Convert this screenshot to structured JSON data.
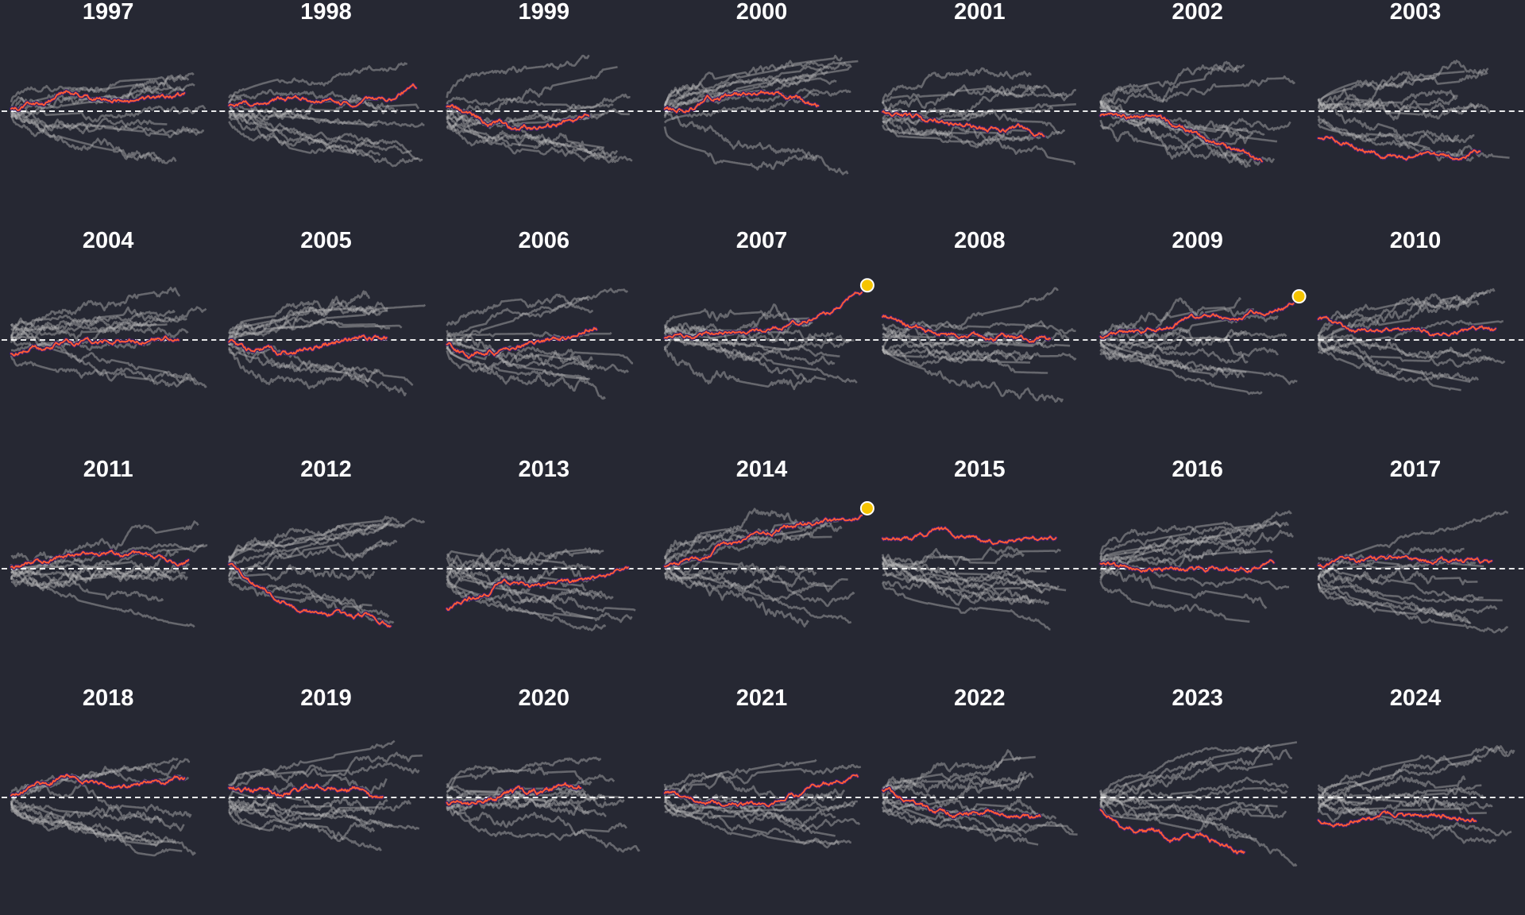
{
  "chart_data": {
    "type": "line",
    "layout": "small-multiples",
    "grid_rows": 4,
    "grid_cols": 7,
    "title": "",
    "xlabel": "",
    "ylabel": "",
    "baseline": {
      "y": 0,
      "style": "dashed",
      "color": "#ffffff"
    },
    "colors": {
      "background": "#262833",
      "highlight_line": "#ff5a36",
      "highlight_outline": "#3a1f66",
      "other_lines": "#bfbfbf",
      "record_marker": "#f5c400",
      "panel_title": "#ffffff"
    },
    "other_series_per_panel": 11,
    "panels": [
      {
        "year": "1997",
        "seed": 1997,
        "trend": [
          0.03,
          0.15,
          0.3,
          0.22,
          0.18,
          0.2,
          0.26
        ],
        "end": 0.88,
        "record": false
      },
      {
        "year": "1998",
        "seed": 1998,
        "trend": [
          0.08,
          0.16,
          0.22,
          0.2,
          0.15,
          0.22,
          0.42
        ],
        "end": 0.95,
        "record": false
      },
      {
        "year": "1999",
        "seed": 1999,
        "trend": [
          0.1,
          -0.08,
          -0.22,
          -0.32,
          -0.28,
          -0.18,
          -0.12
        ],
        "end": 0.72,
        "record": false
      },
      {
        "year": "2000",
        "seed": 2000,
        "trend": [
          0.05,
          0.08,
          0.25,
          0.3,
          0.28,
          0.22,
          0.1
        ],
        "end": 0.78,
        "record": false
      },
      {
        "year": "2001",
        "seed": 2001,
        "trend": [
          -0.02,
          -0.12,
          -0.18,
          -0.25,
          -0.32,
          -0.3,
          -0.4
        ],
        "end": 0.82,
        "record": false
      },
      {
        "year": "2002",
        "seed": 2002,
        "trend": [
          -0.1,
          -0.12,
          -0.15,
          -0.3,
          -0.5,
          -0.7,
          -0.85
        ],
        "end": 0.82,
        "record": false
      },
      {
        "year": "2003",
        "seed": 2003,
        "trend": [
          -0.45,
          -0.55,
          -0.7,
          -0.78,
          -0.8,
          -0.8,
          -0.75
        ],
        "end": 0.82,
        "record": false
      },
      {
        "year": "2004",
        "seed": 2004,
        "trend": [
          -0.22,
          -0.12,
          -0.05,
          0.0,
          -0.02,
          0.0,
          0.08
        ],
        "end": 0.85,
        "record": false
      },
      {
        "year": "2005",
        "seed": 2005,
        "trend": [
          -0.05,
          -0.18,
          -0.22,
          -0.18,
          -0.05,
          0.05,
          0.08
        ],
        "end": 0.8,
        "record": false
      },
      {
        "year": "2006",
        "seed": 2006,
        "trend": [
          -0.08,
          -0.25,
          -0.18,
          -0.1,
          -0.02,
          0.06,
          0.2
        ],
        "end": 0.76,
        "record": false
      },
      {
        "year": "2007",
        "seed": 2007,
        "trend": [
          0.05,
          0.12,
          0.15,
          0.18,
          0.3,
          0.48,
          0.82
        ],
        "end": 1.0,
        "record": true
      },
      {
        "year": "2008",
        "seed": 2008,
        "trend": [
          0.4,
          0.25,
          0.12,
          0.05,
          0.02,
          0.02,
          0.05
        ],
        "end": 0.85,
        "record": false
      },
      {
        "year": "2009",
        "seed": 2009,
        "trend": [
          0.05,
          0.12,
          0.25,
          0.35,
          0.4,
          0.48,
          0.62
        ],
        "end": 0.98,
        "record": true
      },
      {
        "year": "2010",
        "seed": 2010,
        "trend": [
          0.35,
          0.2,
          0.15,
          0.22,
          0.12,
          0.18,
          0.18
        ],
        "end": 0.9,
        "record": false
      },
      {
        "year": "2011",
        "seed": 2011,
        "trend": [
          0.02,
          0.12,
          0.28,
          0.3,
          0.25,
          0.22,
          0.15
        ],
        "end": 0.9,
        "record": false
      },
      {
        "year": "2012",
        "seed": 2012,
        "trend": [
          0.05,
          -0.25,
          -0.55,
          -0.75,
          -0.8,
          -0.85,
          -0.92
        ],
        "end": 0.82,
        "record": false
      },
      {
        "year": "2013",
        "seed": 2013,
        "trend": [
          -0.7,
          -0.5,
          -0.25,
          -0.3,
          -0.28,
          -0.15,
          -0.05
        ],
        "end": 0.92,
        "record": false
      },
      {
        "year": "2014",
        "seed": 2014,
        "trend": [
          0.05,
          0.18,
          0.42,
          0.6,
          0.75,
          0.82,
          0.92
        ],
        "end": 1.0,
        "record": true
      },
      {
        "year": "2015",
        "seed": 2015,
        "trend": [
          0.55,
          0.52,
          0.62,
          0.55,
          0.48,
          0.5,
          0.55
        ],
        "end": 0.88,
        "record": false
      },
      {
        "year": "2016",
        "seed": 2016,
        "trend": [
          0.1,
          0.02,
          0.02,
          0.0,
          0.02,
          0.0,
          0.12
        ],
        "end": 0.88,
        "record": false
      },
      {
        "year": "2017",
        "seed": 2017,
        "trend": [
          0.05,
          0.12,
          0.18,
          0.2,
          0.15,
          0.12,
          0.08
        ],
        "end": 0.88,
        "record": false
      },
      {
        "year": "2018",
        "seed": 2018,
        "trend": [
          0.05,
          0.2,
          0.35,
          0.25,
          0.18,
          0.22,
          0.32
        ],
        "end": 0.88,
        "record": false
      },
      {
        "year": "2019",
        "seed": 2019,
        "trend": [
          0.15,
          0.12,
          0.05,
          0.15,
          0.2,
          0.15,
          0.0
        ],
        "end": 0.78,
        "record": false
      },
      {
        "year": "2020",
        "seed": 2020,
        "trend": [
          -0.1,
          -0.15,
          -0.02,
          0.08,
          0.1,
          0.18,
          0.2
        ],
        "end": 0.68,
        "record": false
      },
      {
        "year": "2021",
        "seed": 2021,
        "trend": [
          0.1,
          -0.08,
          -0.12,
          -0.12,
          0.05,
          0.25,
          0.35
        ],
        "end": 0.98,
        "record": false
      },
      {
        "year": "2022",
        "seed": 2022,
        "trend": [
          0.15,
          -0.05,
          -0.22,
          -0.28,
          -0.25,
          -0.3,
          -0.35
        ],
        "end": 0.8,
        "record": false
      },
      {
        "year": "2023",
        "seed": 2023,
        "trend": [
          -0.22,
          -0.45,
          -0.6,
          -0.72,
          -0.7,
          -0.78,
          -0.95
        ],
        "end": 0.73,
        "record": false
      },
      {
        "year": "2024",
        "seed": 2024,
        "trend": [
          -0.4,
          -0.45,
          -0.35,
          -0.3,
          -0.3,
          -0.32,
          -0.4
        ],
        "end": 0.8,
        "record": false
      }
    ]
  }
}
